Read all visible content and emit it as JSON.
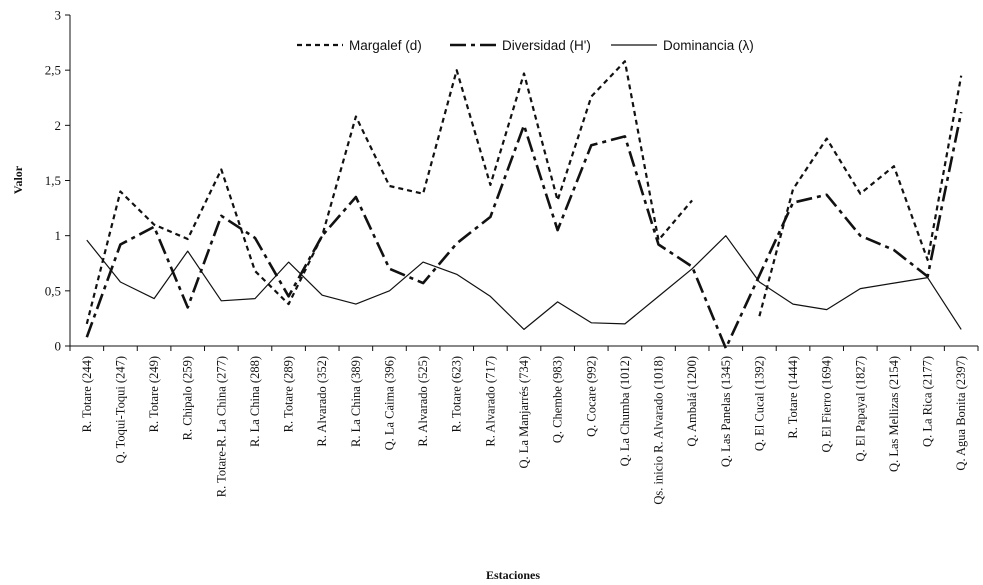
{
  "chart_data": {
    "type": "line",
    "xlabel": "Estaciones",
    "ylabel": "Valor",
    "ylim": [
      0,
      3
    ],
    "yticks": [
      "0",
      "0,5",
      "1",
      "1,5",
      "2",
      "2,5",
      "3"
    ],
    "grid": false,
    "legend_position": "top",
    "categories": [
      "R. Totare (244)",
      "Q. Toqui-Toqui (247)",
      "R. Totare (249)",
      "R. Chipalo (259)",
      "R. Totare-R. La China (277)",
      "R. La China (288)",
      "R. Totare (289)",
      "R. Alvarado (352)",
      "R. La China (389)",
      "Q. La Caima (396)",
      "R. Alvarado (525)",
      "R. Totare (623)",
      "R. Alvarado (717)",
      "Q. La Manjarrés (734)",
      "Q. Chembe (983)",
      "Q. Cocare (992)",
      "Q. La Chumba (1012)",
      "Qs. inicio R. Alvarado (1018)",
      "Q. Ambalá (1200)",
      "Q. Las Panelas (1345)",
      "Q. El Cucal (1392)",
      "R. Totare (1444)",
      "Q. El Fierro (1694)",
      "Q. El Papayal (1827)",
      "Q. Las Mellizas (2154)",
      "Q. La Rica (2177)",
      "Q. Agua Bonita (2397)"
    ],
    "series": [
      {
        "name": "Margalef (d)",
        "color": "#111111",
        "dash": "short-dash",
        "values": [
          0.2,
          1.4,
          1.1,
          0.97,
          1.6,
          0.68,
          0.38,
          1.0,
          2.08,
          1.45,
          1.38,
          2.5,
          1.46,
          2.47,
          1.32,
          2.26,
          2.58,
          0.96,
          1.32,
          null,
          0.27,
          1.42,
          1.88,
          1.38,
          1.63,
          0.78,
          2.45
        ]
      },
      {
        "name": "Diversidad (H')",
        "color": "#111111",
        "dash": "long-dash-dot",
        "values": [
          0.08,
          0.92,
          1.08,
          0.35,
          1.18,
          0.98,
          0.45,
          1.0,
          1.35,
          0.7,
          0.57,
          0.93,
          1.17,
          2.0,
          1.05,
          1.82,
          1.9,
          0.92,
          0.72,
          -0.02,
          0.64,
          1.3,
          1.37,
          1.0,
          0.87,
          0.63,
          2.12
        ]
      },
      {
        "name": "Dominancia (λ)",
        "color": "#111111",
        "dash": "solid",
        "values": [
          0.96,
          0.58,
          0.43,
          0.86,
          0.41,
          0.43,
          0.76,
          0.46,
          0.38,
          0.5,
          0.76,
          0.65,
          0.45,
          0.15,
          0.4,
          0.21,
          0.2,
          0.45,
          0.7,
          1.0,
          0.58,
          0.38,
          0.33,
          0.52,
          0.57,
          0.62,
          0.15
        ]
      }
    ]
  }
}
